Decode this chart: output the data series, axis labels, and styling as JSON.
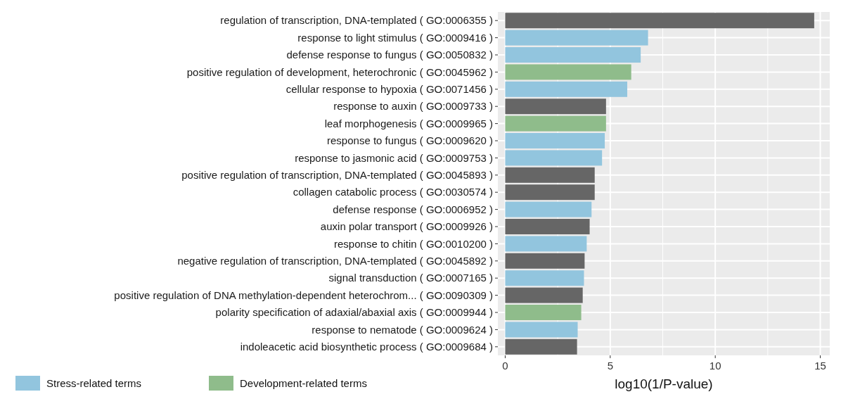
{
  "chart_data": {
    "type": "bar",
    "orientation": "horizontal",
    "categories": [
      "regulation of transcription, DNA-templated ( GO:0006355 )",
      "response to light stimulus ( GO:0009416 )",
      "defense response to fungus ( GO:0050832 )",
      "positive regulation of development, heterochronic ( GO:0045962 )",
      "cellular response to hypoxia ( GO:0071456 )",
      "response to auxin ( GO:0009733 )",
      "leaf morphogenesis ( GO:0009965 )",
      "response to fungus ( GO:0009620 )",
      "response to jasmonic acid ( GO:0009753 )",
      "positive regulation of transcription, DNA-templated ( GO:0045893 )",
      "collagen catabolic process ( GO:0030574 )",
      "defense response ( GO:0006952 )",
      "auxin polar transport ( GO:0009926 )",
      "response to chitin ( GO:0010200 )",
      "negative regulation of transcription, DNA-templated ( GO:0045892 )",
      "signal transduction ( GO:0007165 )",
      "positive regulation of DNA methylation-dependent heterochrom... ( GO:0090309 )",
      "polarity specification of adaxial/abaxial axis ( GO:0009944 )",
      "response to nematode ( GO:0009624 )",
      "indoleacetic acid biosynthetic process ( GO:0009684 )"
    ],
    "series": [
      {
        "color": "#666666",
        "values": [
          14.71,
          null,
          null,
          null,
          null,
          4.8,
          null,
          null,
          null,
          4.26,
          4.26,
          null,
          4.02,
          null,
          3.78,
          null,
          3.69,
          null,
          null,
          3.42
        ]
      },
      {
        "name": "Stress-related terms",
        "color": "#92c5de",
        "values": [
          null,
          6.8,
          6.45,
          null,
          5.81,
          null,
          null,
          4.74,
          4.61,
          null,
          null,
          4.11,
          null,
          3.88,
          null,
          3.75,
          null,
          null,
          3.45,
          null
        ]
      },
      {
        "name": "Development-related terms",
        "color": "#8fbc8b",
        "values": [
          null,
          null,
          null,
          6.0,
          null,
          null,
          4.8,
          null,
          null,
          null,
          null,
          null,
          null,
          null,
          null,
          null,
          null,
          3.62,
          null,
          null
        ]
      }
    ],
    "xlim": [
      -0.35,
      15.45
    ],
    "xticks": [
      0,
      5,
      10,
      15
    ],
    "xlabel": "log10(1/P-value)",
    "grid": true,
    "legend": "bottom left"
  }
}
